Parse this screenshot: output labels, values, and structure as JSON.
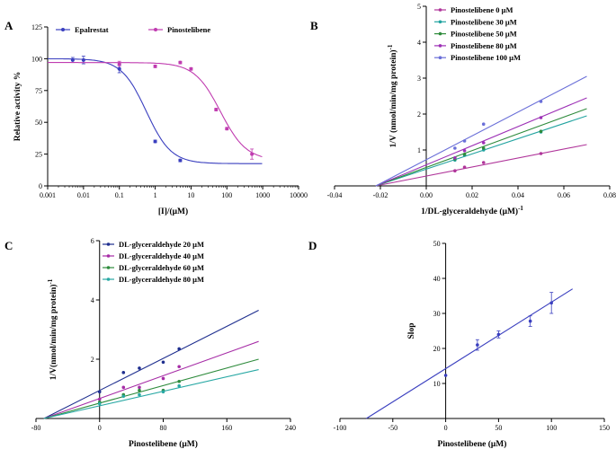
{
  "chart_data": [
    {
      "panel": "A",
      "type": "line",
      "xscale": "log",
      "xlabel": "[I]/(μM)",
      "ylabel": "Relative activity %",
      "xlim": [
        0.001,
        10000
      ],
      "ylim": [
        0,
        125
      ],
      "x_ticks": [
        0.001,
        0.01,
        0.1,
        1,
        10,
        100,
        1000,
        10000
      ],
      "x_tick_labels": [
        "0.001",
        "0.01",
        "0.1",
        "1",
        "10",
        "100",
        "1000",
        "10000"
      ],
      "y_ticks": [
        0,
        25,
        50,
        75,
        100,
        125
      ],
      "legend_position": "top",
      "series": [
        {
          "name": "Epalrestat",
          "color": "#3a3fbf",
          "points": [
            {
              "x": 0.005,
              "y": 99,
              "err": 2
            },
            {
              "x": 0.01,
              "y": 99,
              "err": 3
            },
            {
              "x": 0.1,
              "y": 92,
              "err": 3
            },
            {
              "x": 1,
              "y": 35,
              "err": 1
            },
            {
              "x": 5,
              "y": 20,
              "err": 1
            }
          ],
          "fit": {
            "top": 100,
            "bottom": 17.5,
            "log_ic50": -0.25,
            "hill": 1.25
          }
        },
        {
          "name": "Pinostelibene",
          "color": "#c03cb0",
          "points": [
            {
              "x": 0.1,
              "y": 96,
              "err": 2
            },
            {
              "x": 1,
              "y": 94,
              "err": 1
            },
            {
              "x": 5,
              "y": 97,
              "err": 1
            },
            {
              "x": 10,
              "y": 92,
              "err": 1
            },
            {
              "x": 50,
              "y": 60,
              "err": 1
            },
            {
              "x": 100,
              "y": 45,
              "err": 1
            },
            {
              "x": 500,
              "y": 25,
              "err": 4
            }
          ],
          "fit": {
            "top": 97,
            "bottom": 20,
            "log_ic50": 1.82,
            "hill": 1.2
          }
        }
      ]
    },
    {
      "panel": "B",
      "type": "line",
      "xlabel": "1/DL-glyceraldehyde (μM)",
      "xlabel_sup": "-1",
      "ylabel": "1/V (nmol/min/mg protein)",
      "ylabel_sup": "-1",
      "xlim": [
        -0.04,
        0.08
      ],
      "ylim": [
        0,
        5
      ],
      "x_ticks": [
        -0.04,
        -0.02,
        0,
        0.02,
        0.04,
        0.06,
        0.08
      ],
      "x_tick_labels": [
        "-0.04",
        "-0.02",
        "0.00",
        "0.02",
        "0.04",
        "0.06",
        "0.08"
      ],
      "y_ticks": [
        1,
        2,
        3,
        4,
        5
      ],
      "legend_position": "top-right",
      "series": [
        {
          "name": "Pinostelibene   0 μM",
          "color": "#b0359a",
          "x": [
            0.0125,
            0.0167,
            0.025,
            0.05
          ],
          "y": [
            0.42,
            0.52,
            0.65,
            0.9
          ],
          "line": {
            "x0": -0.022,
            "x1": 0.07,
            "y1": 1.15
          }
        },
        {
          "name": "Pinostelibene  30 μM",
          "color": "#21a3a0",
          "x": [
            0.0125,
            0.0167,
            0.025,
            0.05
          ],
          "y": [
            0.72,
            0.85,
            1.0,
            1.5
          ],
          "line": {
            "x0": -0.022,
            "x1": 0.07,
            "y1": 1.95
          }
        },
        {
          "name": "Pinostelibene  50 μM",
          "color": "#2e8b3c",
          "x": [
            0.0125,
            0.0167,
            0.025,
            0.05
          ],
          "y": [
            0.75,
            0.88,
            1.05,
            1.52
          ],
          "line": {
            "x0": -0.022,
            "x1": 0.07,
            "y1": 2.15
          }
        },
        {
          "name": "Pinostelibene  80 μM",
          "color": "#9c2fb5",
          "x": [
            0.0125,
            0.0167,
            0.025,
            0.05
          ],
          "y": [
            0.78,
            0.98,
            1.2,
            1.9
          ],
          "line": {
            "x0": -0.022,
            "x1": 0.07,
            "y1": 2.45
          }
        },
        {
          "name": "Pinostelibene 100 μM",
          "color": "#6a6fd8",
          "x": [
            0.0125,
            0.0167,
            0.025,
            0.05
          ],
          "y": [
            1.05,
            1.25,
            1.72,
            2.35
          ],
          "line": {
            "x0": -0.022,
            "x1": 0.07,
            "y1": 3.05
          }
        }
      ]
    },
    {
      "panel": "C",
      "type": "line",
      "xlabel": "Pinostelibene (μM)",
      "ylabel": "1/V(nmol/min/mg protein)",
      "ylabel_sup": "-1",
      "xlim": [
        -80,
        240
      ],
      "ylim": [
        0,
        6
      ],
      "x_ticks": [
        -80,
        0,
        80,
        160,
        240
      ],
      "y_ticks": [
        2,
        4,
        6
      ],
      "legend_position": "top-left",
      "series": [
        {
          "name": "DL-glyceraldehyde 20 μM",
          "color": "#1f2f8f",
          "x": [
            0,
            30,
            50,
            80,
            100
          ],
          "y": [
            0.9,
            1.55,
            1.7,
            1.9,
            2.35
          ],
          "line": {
            "x0": -70,
            "x1": 200,
            "y1": 3.65
          }
        },
        {
          "name": "DL-glyceraldehyde 40 μM",
          "color": "#a62ca6",
          "x": [
            0,
            30,
            50,
            80,
            100
          ],
          "y": [
            0.65,
            1.05,
            1.05,
            1.35,
            1.75
          ],
          "line": {
            "x0": -70,
            "x1": 200,
            "y1": 2.6
          }
        },
        {
          "name": "DL-glyceraldehyde 60 μM",
          "color": "#2e8b3c",
          "x": [
            0,
            30,
            50,
            80,
            100
          ],
          "y": [
            0.55,
            0.8,
            0.95,
            0.95,
            1.25
          ],
          "line": {
            "x0": -70,
            "x1": 200,
            "y1": 2.0
          }
        },
        {
          "name": "DL-glyceraldehyde 80 μM",
          "color": "#28a8a4",
          "x": [
            0,
            30,
            50,
            80,
            100
          ],
          "y": [
            0.5,
            0.75,
            0.8,
            0.9,
            1.1
          ],
          "line": {
            "x0": -70,
            "x1": 200,
            "y1": 1.65
          }
        }
      ]
    },
    {
      "panel": "D",
      "type": "scatter",
      "xlabel": "Pinostelibene (μM)",
      "ylabel": "Slop",
      "xlim": [
        -100,
        150
      ],
      "ylim": [
        0,
        50
      ],
      "x_ticks": [
        -100,
        -50,
        0,
        50,
        100,
        150
      ],
      "y_ticks": [
        10,
        20,
        30,
        40,
        50
      ],
      "series": [
        {
          "name": "Slope",
          "color": "#3a3fbf",
          "x": [
            0,
            30,
            50,
            80,
            100
          ],
          "y": [
            12.3,
            21,
            24,
            27.8,
            33
          ],
          "err": [
            0,
            1.5,
            1,
            1.5,
            3
          ],
          "line": {
            "x0": -75,
            "y0": 0,
            "x1": 120,
            "y1": 37
          }
        }
      ]
    }
  ]
}
